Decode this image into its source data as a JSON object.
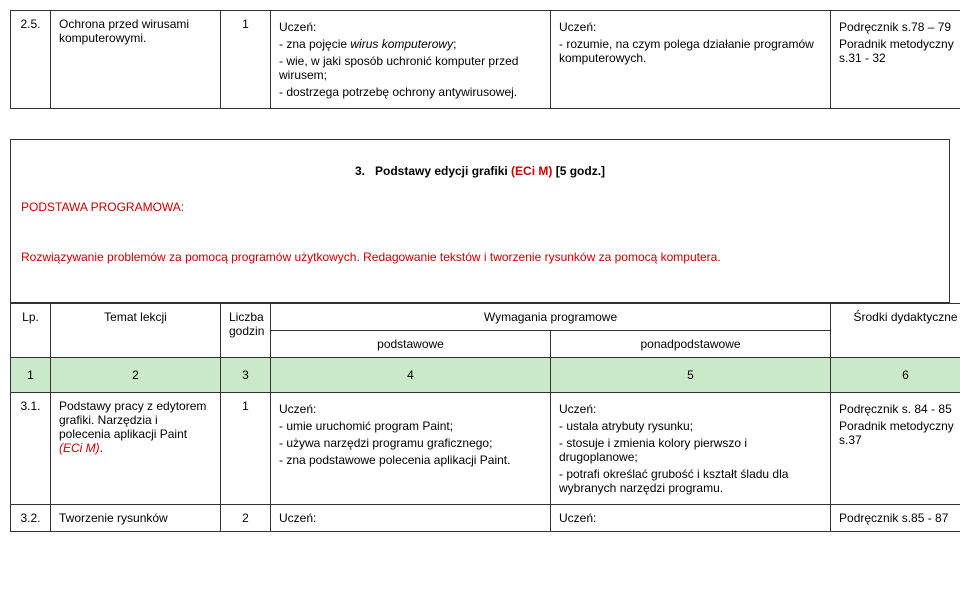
{
  "table1": {
    "row": {
      "num": "2.5.",
      "topic": "Ochrona przed wirusami komputerowymi.",
      "hours": "1",
      "basic_header": "Uczeń:",
      "basic1": "- zna pojęcie ",
      "basic1_italic": "wirus komputerowy",
      "basic1_end": ";",
      "basic2": "- wie, w jaki sposób uchronić komputer przed wirusem;",
      "basic3": "- dostrzega potrzebę ochrony antywirusowej.",
      "above_header": "Uczeń:",
      "above1": "- rozumie, na czym polega działanie programów komputerowych.",
      "res1": "Podręcznik s.78 – 79",
      "res2": "Poradnik metodyczny s.31 - 32"
    }
  },
  "section": {
    "title_num": "3.",
    "title_prefix": "Podstawy edycji grafiki ",
    "title_red": "(ECi M)",
    "title_suffix": " [5 godz.]",
    "podstawa_label": "PODSTAWA PROGRAMOWA:",
    "podstawa_text": "Rozwiązywanie problemów za pomocą programów użytkowych. Redagowanie tekstów i tworzenie rysunków za pomocą komputera."
  },
  "table2_headers": {
    "lp": "Lp.",
    "topic": "Temat lekcji",
    "hours": "Liczba godzin",
    "wymag": "Wymagania programowe",
    "basic": "podstawowe",
    "above": "ponadpodstawowe",
    "res": "Środki dydaktyczne",
    "n1": "1",
    "n2": "2",
    "n3": "3",
    "n4": "4",
    "n5": "5",
    "n6": "6"
  },
  "table2_rows": [
    {
      "num": "3.1.",
      "topic1": "Podstawy pracy z edytorem grafiki. Narzędzia i polecenia aplikacji Paint ",
      "topic_red": "(ECi M)",
      "topic_end": ".",
      "hours": "1",
      "basic_header": "Uczeń:",
      "basic1": "- umie uruchomić program Paint;",
      "basic2": "- używa narzędzi programu graficznego;",
      "basic3": "- zna podstawowe polecenia aplikacji Paint.",
      "above_header": "Uczeń:",
      "above1": "- ustala atrybuty rysunku;",
      "above2": "- stosuje i zmienia kolory pierwszo i drugoplanowe;",
      "above3": "- potrafi określać grubość i kształt śladu dla wybranych narzędzi programu.",
      "res1": "Podręcznik s. 84 - 85",
      "res2": "Poradnik metodyczny s.37"
    },
    {
      "num": "3.2.",
      "topic": "Tworzenie rysunków",
      "hours": "2",
      "basic_header": "Uczeń:",
      "above_header": "Uczeń:",
      "res1": "Podręcznik s.85 - 87"
    }
  ]
}
